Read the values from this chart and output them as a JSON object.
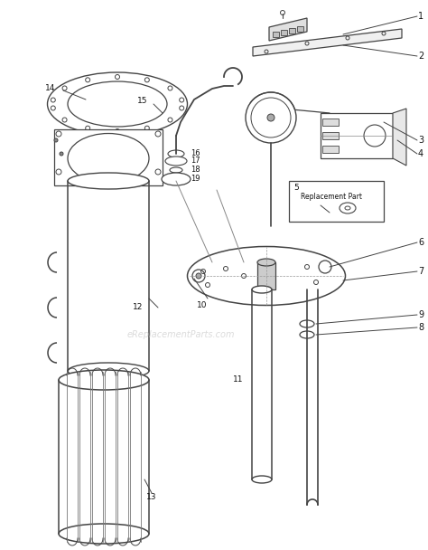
{
  "bg_color": "#ffffff",
  "line_color": "#444444",
  "label_color": "#111111",
  "watermark": "eReplacementParts.com",
  "watermark_color": "#cccccc",
  "figsize": [
    4.74,
    6.08
  ],
  "dpi": 100
}
